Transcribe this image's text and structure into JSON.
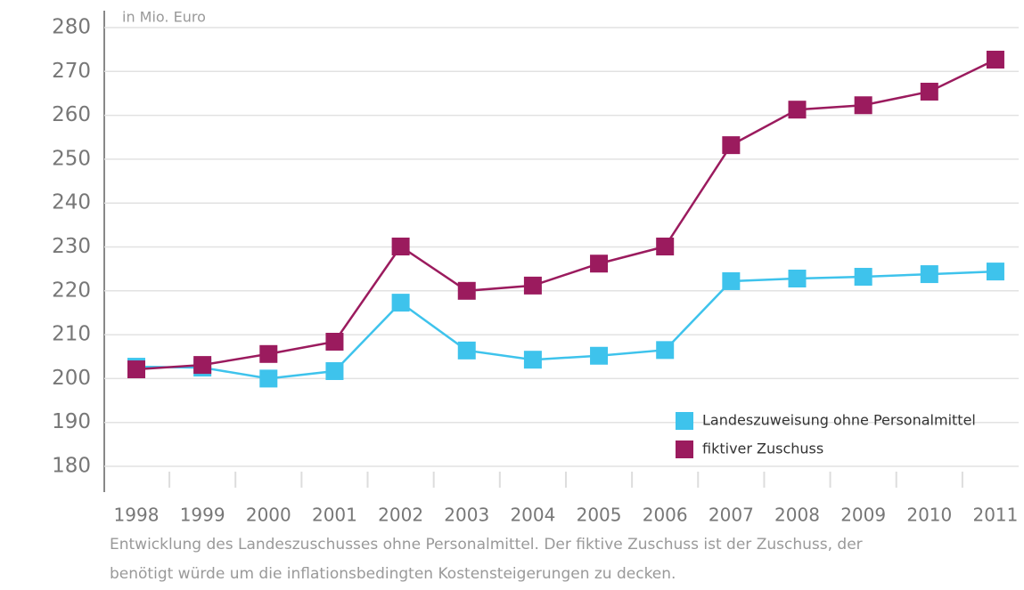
{
  "chart_data": {
    "type": "line",
    "unit_label": "in Mio. Euro",
    "caption": [
      "Entwicklung des Landeszuschusses ohne Personalmittel. Der fiktive Zuschuss ist der Zuschuss, der",
      "benötigt würde um die inflationsbedingten Kostensteigerungen zu decken."
    ],
    "categories": [
      "1998",
      "1999",
      "2000",
      "2001",
      "2002",
      "2003",
      "2004",
      "2005",
      "2006",
      "2007",
      "2008",
      "2009",
      "2010",
      "2011"
    ],
    "series": [
      {
        "name": "Landeszuweisung ohne Personalmittel",
        "color": "#3ec3ec",
        "values": [
          202.7,
          202.5,
          200,
          201.7,
          217.3,
          206.4,
          204.3,
          205.2,
          206.5,
          222.2,
          222.8,
          223.2,
          223.8,
          224.4
        ]
      },
      {
        "name": "fiktiver Zuschuss",
        "color": "#9b1b5e",
        "values": [
          202.1,
          203.1,
          205.6,
          208.4,
          230.1,
          220,
          221.2,
          226.2,
          230.1,
          253.2,
          261.3,
          262.3,
          265.4,
          272.7
        ]
      }
    ],
    "ylim": [
      180,
      280
    ],
    "yticks": [
      180,
      190,
      200,
      210,
      220,
      230,
      240,
      250,
      260,
      270,
      280
    ],
    "grid": true,
    "legend": "lower right"
  }
}
